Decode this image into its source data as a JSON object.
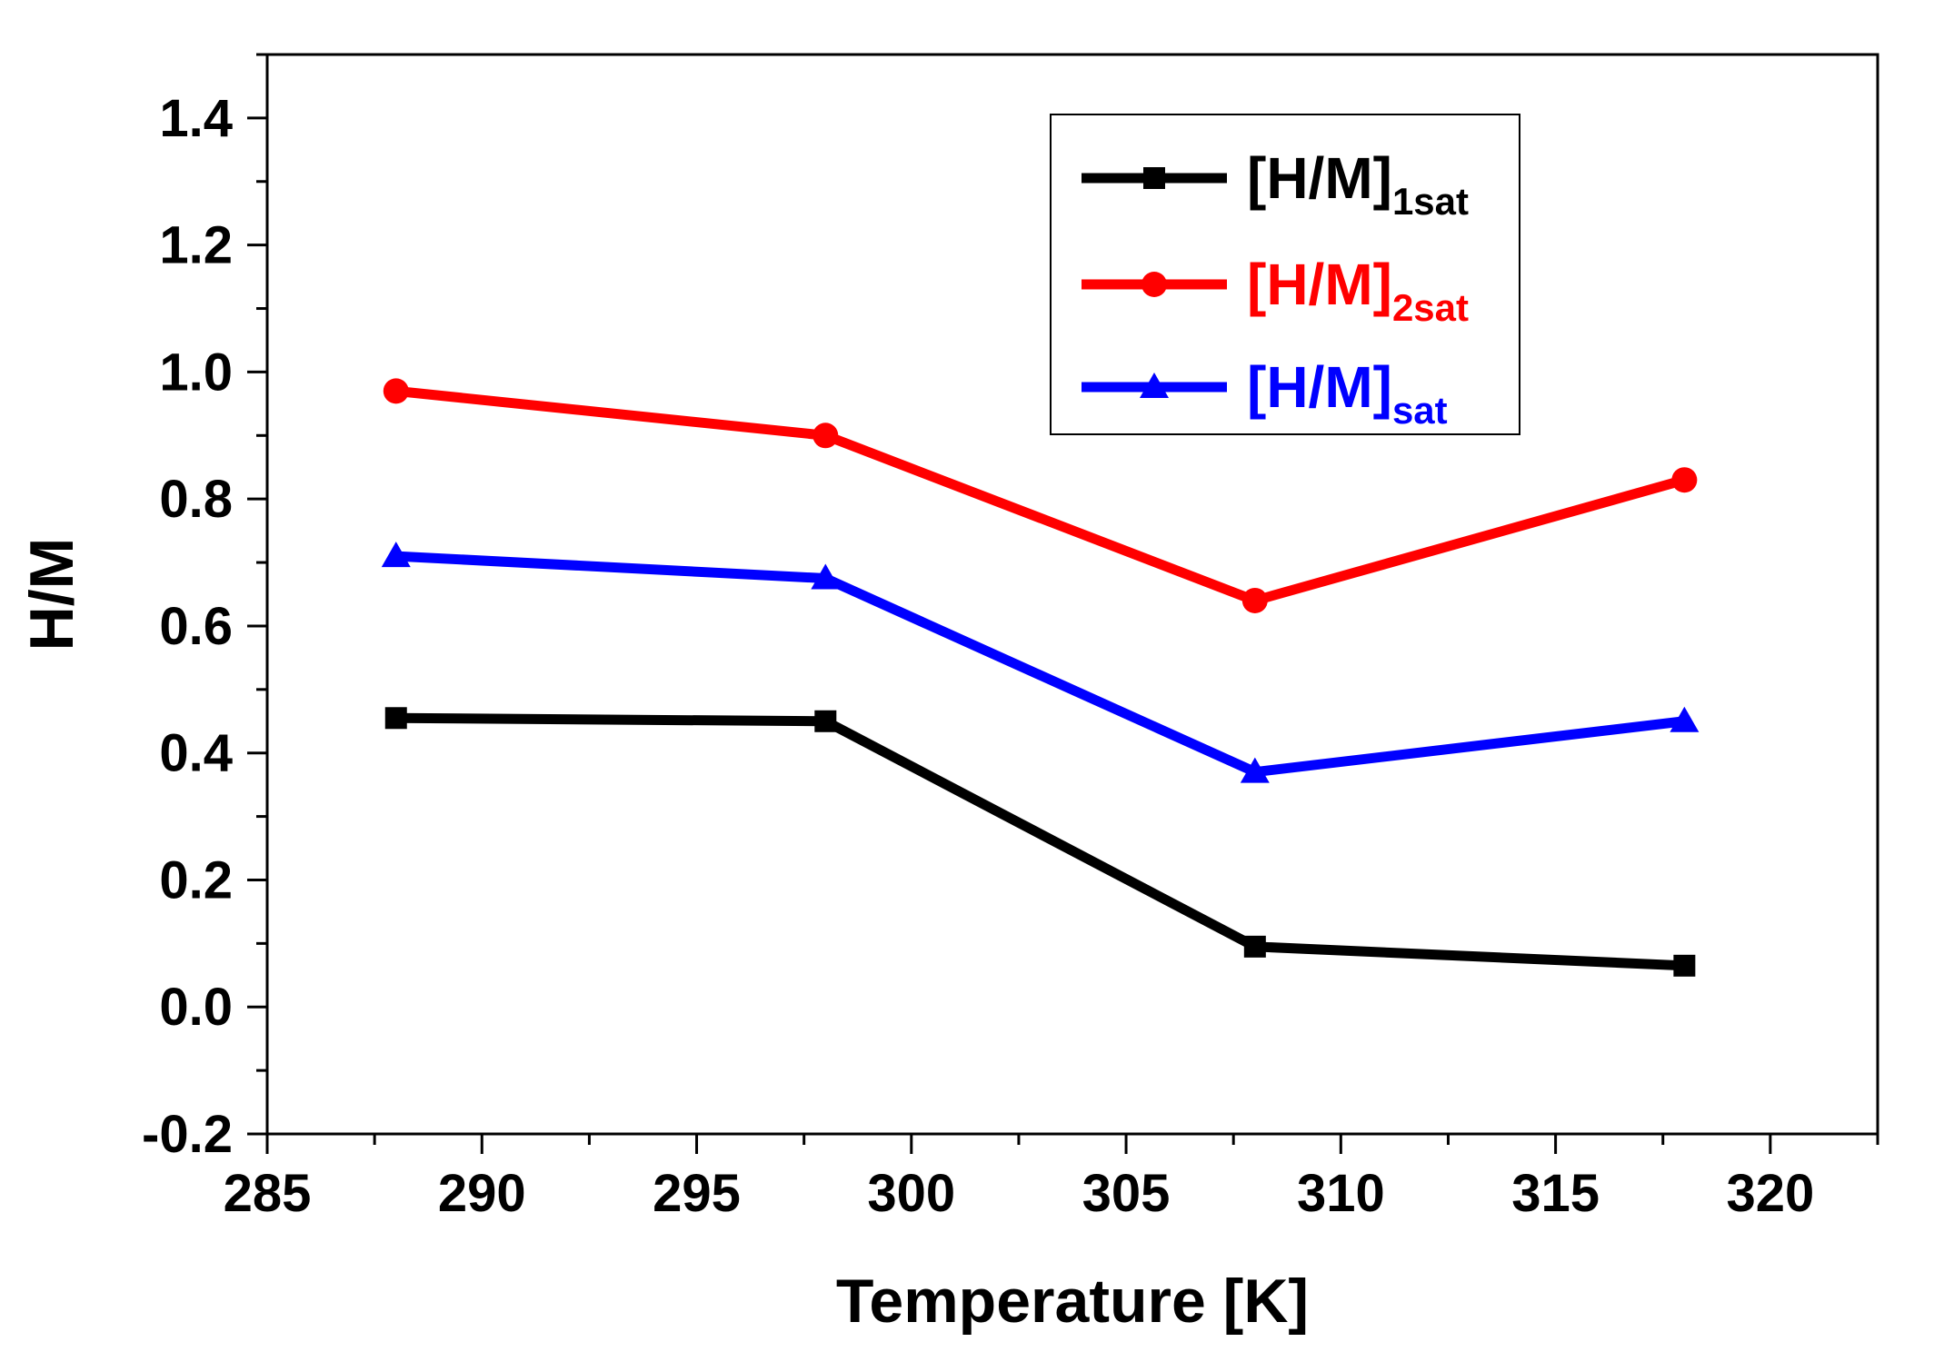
{
  "chart_data": {
    "type": "line",
    "title": "",
    "xlabel": "Temperature [K]",
    "ylabel": "H/M",
    "xlim": [
      285,
      322.5
    ],
    "ylim": [
      -0.2,
      1.5
    ],
    "x_ticks": [
      285,
      290,
      295,
      300,
      305,
      310,
      315,
      320
    ],
    "y_ticks": [
      -0.2,
      0.0,
      0.2,
      0.4,
      0.6,
      0.8,
      1.0,
      1.2,
      1.4
    ],
    "x_tick_labels": [
      "285",
      "290",
      "295",
      "300",
      "305",
      "310",
      "315",
      "320"
    ],
    "y_tick_labels": [
      "-0.2",
      "0.0",
      "0.2",
      "0.4",
      "0.6",
      "0.8",
      "1.0",
      "1.2",
      "1.4"
    ],
    "x": [
      288,
      298,
      308,
      318
    ],
    "legend_position": "top-right",
    "series": [
      {
        "name": "[H/M]",
        "sub": "1sat",
        "color": "#000000",
        "marker": "square",
        "values": [
          0.455,
          0.45,
          0.095,
          0.065
        ]
      },
      {
        "name": "[H/M]",
        "sub": "2sat",
        "color": "#ff0000",
        "marker": "circle",
        "values": [
          0.97,
          0.9,
          0.64,
          0.83
        ]
      },
      {
        "name": "[H/M]",
        "sub": "sat",
        "color": "#0000ff",
        "marker": "triangle",
        "values": [
          0.71,
          0.675,
          0.37,
          0.45
        ]
      }
    ]
  }
}
